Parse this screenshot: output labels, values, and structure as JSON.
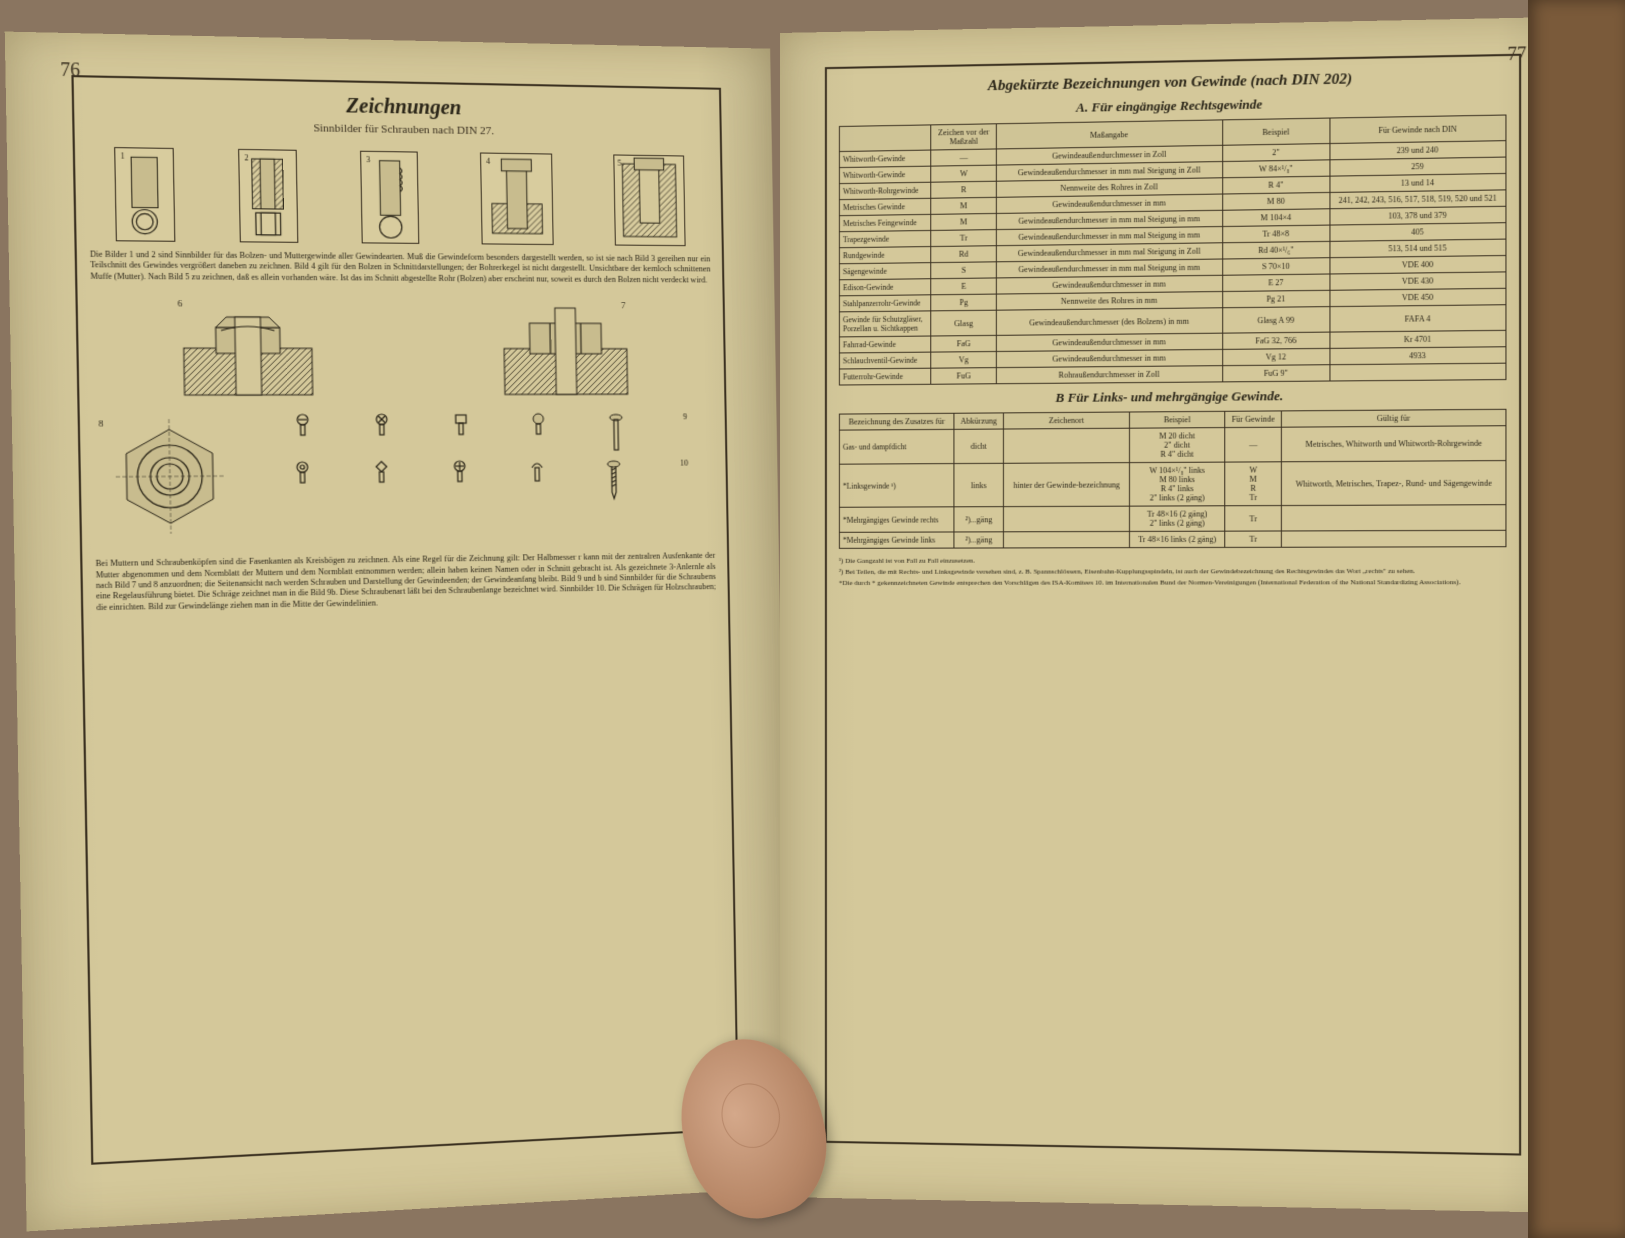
{
  "left_page": {
    "number": "76",
    "title": "Zeichnungen",
    "subtitle": "Sinnbilder für Schrauben nach DIN 27.",
    "figure_labels": [
      "1",
      "2",
      "3",
      "4",
      "5"
    ],
    "text_block_1": "Die Bilder 1 und 2 sind Sinnbilder für das Bolzen- und Muttergewinde aller Gewindearten. Muß die Gewindeform besonders dargestellt werden, so ist sie nach Bild 3 gereihen nur ein Teilschnitt des Gewindes vergrößert daneben zu zeichnen. Bild 4 gilt für den Bolzen in Schnittdarstellungen; der Bohrerkegel ist nicht dargestellt. Unsichtbare der kernloch schnittenen Muffe (Mutter). Nach Bild 5 zu zeichnen, daß es allein vorhanden wäre. Ist das im Schnitt abgestellte Rohr (Bolzen) aber erscheint nur, soweit es durch den Bolzen nicht verdeckt wird.",
    "figure_labels_2": [
      "6",
      "7"
    ],
    "text_block_2": "Bei Muttern und Schraubenköpfen sind die Fasenkanten als Kreisbögen zu zeichnen. Als eine Regel für die Zeichnung gilt: Der Halbmesser r kann mit der zentralren Ausfenkante der Mutter abgenommen und dem Normblatt der Muttern und dem Normblatt entnommen werden; allein haben keinen Namen oder in Schnitt gebracht ist. Als gezeichnete 3-Anlernle als nach Bild 7 und 8 anzuordnen; die Seitenansicht nach werden Schrauben und Darstellung der Gewindeenden; der Gewindeanfang bleibt. Bild 9 und b sind Sinnbilder für die Schraubens eine Regelausführung bietet. Die Schräge zeichnet man in die Bild 9b. Diese Schraubenart läßt bei den Schraubenlange bezeichnet wird. Sinnbilder 10. Die Schrägen für Holzschrauben; die einrichten. Bild zur Gewindelänge ziehen man in die Mitte der Gewindelinien."
  },
  "right_page": {
    "number": "77",
    "title": "Abgekürzte Bezeichnungen von Gewinde (nach DIN 202)",
    "section_a_title": "A. Für eingängige Rechtsgewinde",
    "table_a": {
      "headers": [
        "",
        "Zeichen vor der Maßzahl",
        "Maßangabe",
        "Beispiel",
        "Für Gewinde nach DIN"
      ],
      "rows": [
        [
          "Whitworth-Gewinde",
          "—",
          "Gewindeaußendurchmesser in Zoll",
          "2\"",
          "239 und 240"
        ],
        [
          "Whitworth-Gewinde",
          "W",
          "Gewindeaußendurchmesser in mm mal Steigung in Zoll",
          "W 84×¹/₈\"",
          "259"
        ],
        [
          "Whitworth-Rohrgewinde",
          "R",
          "Nennweite des Rohres in Zoll",
          "R 4\"",
          "13 und 14"
        ],
        [
          "Metrisches Gewinde",
          "M",
          "Gewindeaußendurchmesser in mm",
          "M 80",
          "241, 242, 243, 516, 517, 518, 519, 520 und 521"
        ],
        [
          "Metrisches Feingewinde",
          "M",
          "Gewindeaußendurchmesser in mm mal Steigung in mm",
          "M 104×4",
          "103, 378 und 379"
        ],
        [
          "Trapezgewinde",
          "Tr",
          "Gewindeaußendurchmesser in mm mal Steigung in mm",
          "Tr 48×8",
          "405"
        ],
        [
          "Rundgewinde",
          "Rd",
          "Gewindeaußendurchmesser in mm mal Steigung in Zoll",
          "Rd 40×¹/₆\"",
          "513, 514 und 515"
        ],
        [
          "Sägengewinde",
          "S",
          "Gewindeaußendurchmesser in mm mal Steigung in mm",
          "S 70×10",
          "VDE 400"
        ],
        [
          "Edison-Gewinde",
          "E",
          "Gewindeaußendurchmesser in mm",
          "E 27",
          "VDE 430"
        ],
        [
          "Stahlpanzerrohr-Gewinde",
          "Pg",
          "Nennweite des Rohres in mm",
          "Pg 21",
          "VDE 450"
        ],
        [
          "Gewinde für Schutzgläser, Porzellan u. Sichtkappen",
          "Glasg",
          "Gewindeaußendurchmesser (des Bolzens) in mm",
          "Glasg A 99",
          "FAFA 4"
        ],
        [
          "Fahrrad-Gewinde",
          "FaG",
          "Gewindeaußendurchmesser in mm",
          "FaG 32, 766",
          "Kr 4701"
        ],
        [
          "Schlauchventil-Gewinde",
          "Vg",
          "Gewindeaußendurchmesser in mm",
          "Vg 12",
          "4933"
        ],
        [
          "Futterrohr-Gewinde",
          "FuG",
          "Rohraußendurchmesser in Zoll",
          "FuG 9\"",
          ""
        ]
      ]
    },
    "section_b_title": "B Für Links- und mehrgängige Gewinde.",
    "table_b": {
      "headers": [
        "Bezeichnung des Zusatzes für",
        "Abkürzung",
        "Zeichenort",
        "Beispiel",
        "Für Gewinde",
        "Gültig für"
      ],
      "rows": [
        [
          "Gas- und dampfdicht",
          "dicht",
          "",
          "M 20 dicht\n2\" dicht\nR 4\" dicht",
          "—",
          "Metrisches, Whitworth und Whitworth-Rohrgewinde"
        ],
        [
          "*Linksgewinde ¹)",
          "links",
          "hinter der Gewinde-bezeichnung",
          "W 104×¹/₈\" links\nM 80 links\nR 4\" links\n2\" links (2 gäng)",
          "W\nM\nR\nTr",
          "Whitworth, Metrisches, Trapez-, Rund- und Sägengewinde"
        ],
        [
          "*Mehrgängiges Gewinde rechts",
          "²)...gäng",
          "",
          "Tr 48×16 (2 gäng)\n2\" links (2 gäng)",
          "Tr",
          ""
        ],
        [
          "*Mehrgängiges Gewinde links",
          "²)...gäng",
          "",
          "Tr 48×16 links (2 gäng)",
          "Tr",
          ""
        ]
      ]
    },
    "footnotes": [
      "¹) Die Gangzahl ist von Fall zu Fall einzusetzen.",
      "²) Bei Teilen, die mit Rechts- und Linksgewinde versehen sind, z. B. Spannschlössern, Eisenbahn-Kupplungsspindeln, ist auch der Gewindebezeichnung des Rechtsgewindes das Wort „rechts\" zu sehen.",
      "*Die durch * gekennzeichneten Gewinde entsprechen den Vorschlägen des ISA-Komitees 10. im Internationalen Bund der Normen-Vereinigungen (International Federation of the National Standardizing Associations)."
    ]
  },
  "colors": {
    "page_bg": "#d4c89a",
    "ink": "#2a2518",
    "border": "#3a3020",
    "cover": "#7a5a3a",
    "desk": "#8a7560"
  }
}
